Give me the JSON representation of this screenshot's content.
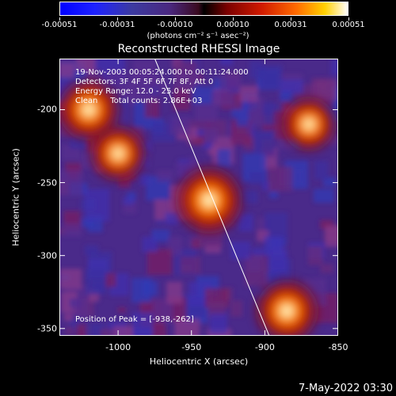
{
  "colorbar": {
    "ticks": [
      "-0.00051",
      "-0.00031",
      "-0.00010",
      "0.00010",
      "0.00031",
      "0.00051"
    ],
    "units": "(photons cm⁻² s⁻¹ asec⁻²)"
  },
  "chart_data": {
    "type": "heatmap",
    "title": "Reconstructed RHESSI Image",
    "xlabel": "Heliocentric X (arcsec)",
    "ylabel": "Heliocentric Y (arcsec)",
    "xlim": [
      -1040,
      -850
    ],
    "ylim": [
      -355,
      -165
    ],
    "x_ticks": [
      "-1000",
      "-950",
      "-900",
      "-850"
    ],
    "y_ticks": [
      "-200",
      "-250",
      "-300",
      "-350"
    ],
    "x_tick_values": [
      -1000,
      -950,
      -900,
      -850
    ],
    "y_tick_values": [
      -200,
      -250,
      -300,
      -350
    ],
    "colorbar_range": [
      -0.00051,
      0.00051
    ],
    "limb_line": [
      {
        "x": -975,
        "y": -165
      },
      {
        "x": -897,
        "y": -355
      }
    ],
    "sources": [
      {
        "x": -938,
        "y": -262,
        "intensity": 1.0
      },
      {
        "x": -885,
        "y": -338,
        "intensity": 0.85
      },
      {
        "x": -1020,
        "y": -200,
        "intensity": 0.8
      },
      {
        "x": -1000,
        "y": -230,
        "intensity": 0.6
      },
      {
        "x": -870,
        "y": -210,
        "intensity": 0.55
      }
    ]
  },
  "annotations": {
    "time_range": "19-Nov-2003 00:05:24.000 to 00:11:24.000",
    "detectors": "Detectors: 3F 4F 5F 6F 7F 8F, Att 0",
    "energy": "Energy Range: 12.0 - 25.0 keV",
    "clean": "Clean     Total counts: 2.86E+03",
    "peak": "Position of Peak = [-938,-262]"
  },
  "timestamp": "7-May-2022 03:30"
}
